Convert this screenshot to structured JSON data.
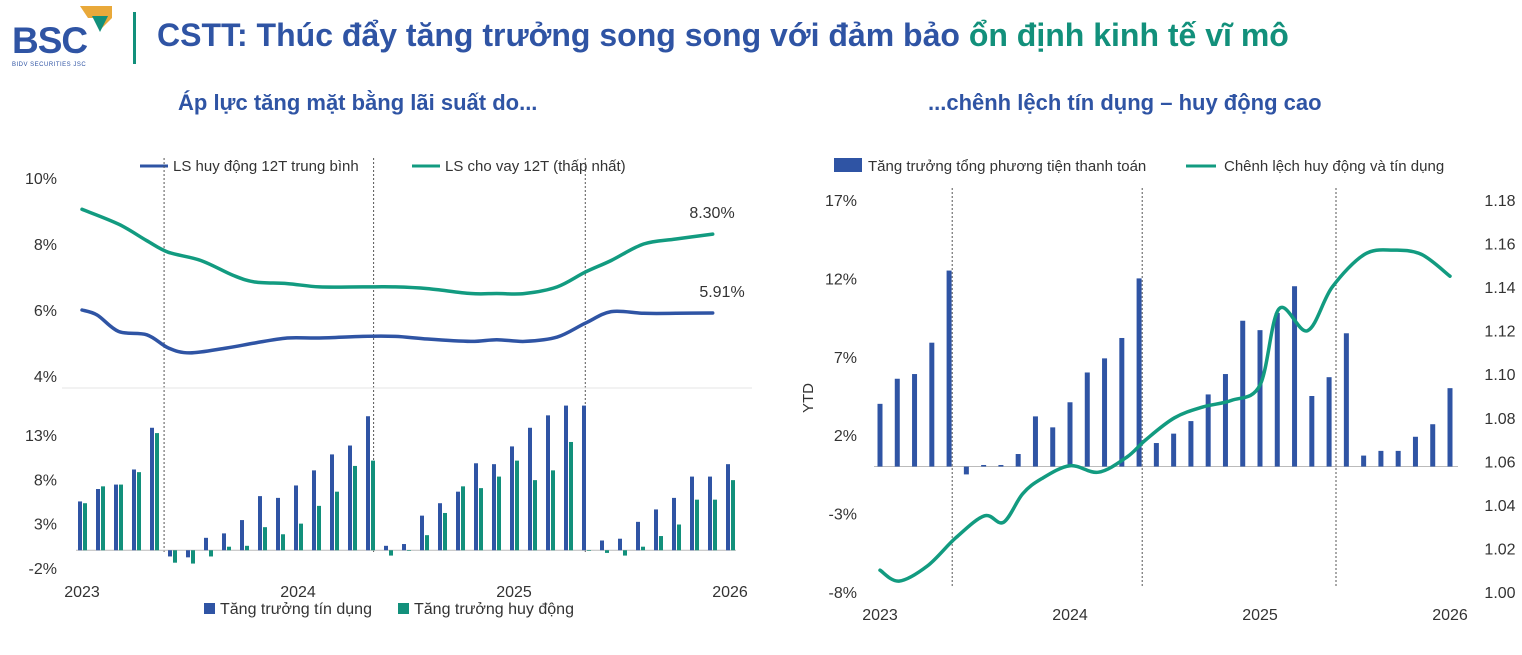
{
  "header": {
    "logo_text": "BSC",
    "logo_subtext": "BIDV SECURITIES JSC",
    "title_main": "CSTT: Thúc đẩy tăng trưởng song song với đảm bảo ",
    "title_accent": "ổn định kinh tế vĩ mô"
  },
  "colors": {
    "blue": "#2f54a4",
    "green": "#12907b",
    "line_blue": "#2f54a4",
    "line_green": "#129b80",
    "text": "#333333"
  },
  "left": {
    "subtitle": "Áp lực tăng mặt bằng lãi suất do...",
    "top_legend": [
      "LS huy động 12T trung bình",
      "LS cho vay 12T (thấp nhất)"
    ],
    "bottom_legend": [
      "Tăng trưởng tín dụng",
      "Tăng trưởng huy động"
    ],
    "x_labels": [
      "2023",
      "2024",
      "2025",
      "2026"
    ]
  },
  "right": {
    "subtitle": "...chênh lệch tín dụng – huy động cao",
    "legend": [
      "Tăng trưởng tổng phương tiện thanh toán",
      "Chênh lệch huy động và tín dụng"
    ],
    "y_axis_title": "YTD",
    "x_labels": [
      "2023",
      "2024",
      "2025",
      "2026"
    ]
  },
  "chart_data": [
    {
      "type": "line",
      "title": "",
      "x_range": [
        2023.0,
        2026.0
      ],
      "ylim": [
        4,
        10
      ],
      "y_ticks": [
        "10%",
        "8%",
        "6%",
        "4%"
      ],
      "annotations": [
        "8.30%",
        "5.91%"
      ],
      "series": [
        {
          "name": "LS huy động 12T trung bình",
          "x": [
            2023.0,
            2023.07,
            2023.17,
            2023.3,
            2023.4,
            2023.5,
            2023.67,
            2023.8,
            2023.95,
            2024.1,
            2024.3,
            2024.45,
            2024.6,
            2024.8,
            2024.92,
            2025.05,
            2025.2,
            2025.33,
            2025.45,
            2025.6,
            2025.75,
            2025.92
          ],
          "y": [
            6.0,
            5.85,
            5.35,
            5.25,
            4.85,
            4.7,
            4.85,
            5.0,
            5.15,
            5.15,
            5.2,
            5.2,
            5.12,
            5.05,
            5.1,
            5.05,
            5.18,
            5.6,
            5.95,
            5.9,
            5.9,
            5.91
          ]
        },
        {
          "name": "LS cho vay 12T (thấp nhất)",
          "x": [
            2023.0,
            2023.17,
            2023.3,
            2023.4,
            2023.55,
            2023.7,
            2023.8,
            2023.95,
            2024.1,
            2024.3,
            2024.45,
            2024.6,
            2024.8,
            2024.92,
            2025.05,
            2025.2,
            2025.33,
            2025.45,
            2025.6,
            2025.75,
            2025.92
          ],
          "y": [
            9.05,
            8.6,
            8.1,
            7.75,
            7.5,
            7.05,
            6.85,
            6.8,
            6.7,
            6.7,
            6.7,
            6.65,
            6.5,
            6.5,
            6.5,
            6.7,
            7.15,
            7.5,
            8.0,
            8.15,
            8.3
          ]
        }
      ]
    },
    {
      "type": "bar",
      "title": "",
      "ylim": [
        -2,
        14
      ],
      "y_ticks": [
        "13%",
        "8%",
        "3%",
        "-2%"
      ],
      "series": [
        {
          "name": "Tăng trưởng tín dụng",
          "values": [
            5.5,
            6.9,
            7.4,
            9.1,
            13.8,
            -0.7,
            -0.8,
            1.4,
            1.9,
            3.4,
            6.1,
            5.9,
            7.3,
            9.0,
            10.8,
            11.8,
            15.1,
            0.5,
            0.7,
            3.9,
            5.3,
            6.6,
            9.8,
            9.7,
            11.7,
            13.8,
            15.2,
            16.3,
            16.3,
            1.1,
            1.3,
            3.2,
            4.6,
            5.9,
            8.3,
            8.3,
            9.7
          ]
        },
        {
          "name": "Tăng trưởng huy động",
          "values": [
            5.3,
            7.2,
            7.4,
            8.8,
            13.2,
            -1.4,
            -1.5,
            -0.7,
            0.4,
            0.5,
            2.6,
            1.8,
            3.0,
            5.0,
            6.6,
            9.5,
            10.1,
            -0.6,
            0.0,
            1.7,
            4.2,
            7.2,
            7.0,
            8.3,
            10.1,
            7.9,
            9.0,
            12.2,
            0.0,
            -0.3,
            -0.6,
            0.4,
            1.6,
            2.9,
            5.7,
            5.7,
            7.9
          ]
        }
      ]
    },
    {
      "type": "bar",
      "title": "",
      "ylim": [
        -8,
        17
      ],
      "y_ticks": [
        "17%",
        "12%",
        "7%",
        "2%",
        "-3%",
        "-8%"
      ],
      "y2lim": [
        1.0,
        1.18
      ],
      "y2_ticks": [
        "1.18",
        "1.16",
        "1.14",
        "1.12",
        "1.10",
        "1.08",
        "1.06",
        "1.04",
        "1.02",
        "1.00"
      ],
      "series": [
        {
          "name": "Tăng trưởng tổng phương tiện thanh toán",
          "values": [
            4.0,
            5.6,
            5.9,
            7.9,
            12.5,
            -0.5,
            0.1,
            0.1,
            0.8,
            3.2,
            2.5,
            4.1,
            6.0,
            6.9,
            8.2,
            12.0,
            1.5,
            2.1,
            2.9,
            4.6,
            5.9,
            9.3,
            8.7,
            9.8,
            11.5,
            4.5,
            5.7,
            8.5,
            0.7,
            1.0,
            1.0,
            1.9,
            2.7,
            5.0
          ]
        },
        {
          "name": "Chênh lệch huy động và tín dụng",
          "axis": "right",
          "x": [
            2023.0,
            2023.1,
            2023.25,
            2023.4,
            2023.55,
            2023.65,
            2023.75,
            2023.85,
            2024.0,
            2024.15,
            2024.3,
            2024.4,
            2024.55,
            2024.7,
            2024.85,
            2025.0,
            2025.1,
            2025.25,
            2025.38,
            2025.55,
            2025.7,
            2025.85,
            2026.0
          ],
          "y": [
            1.01,
            1.005,
            1.012,
            1.025,
            1.035,
            1.032,
            1.045,
            1.052,
            1.058,
            1.055,
            1.062,
            1.07,
            1.08,
            1.085,
            1.088,
            1.095,
            1.13,
            1.12,
            1.14,
            1.155,
            1.157,
            1.155,
            1.145
          ]
        }
      ]
    }
  ]
}
